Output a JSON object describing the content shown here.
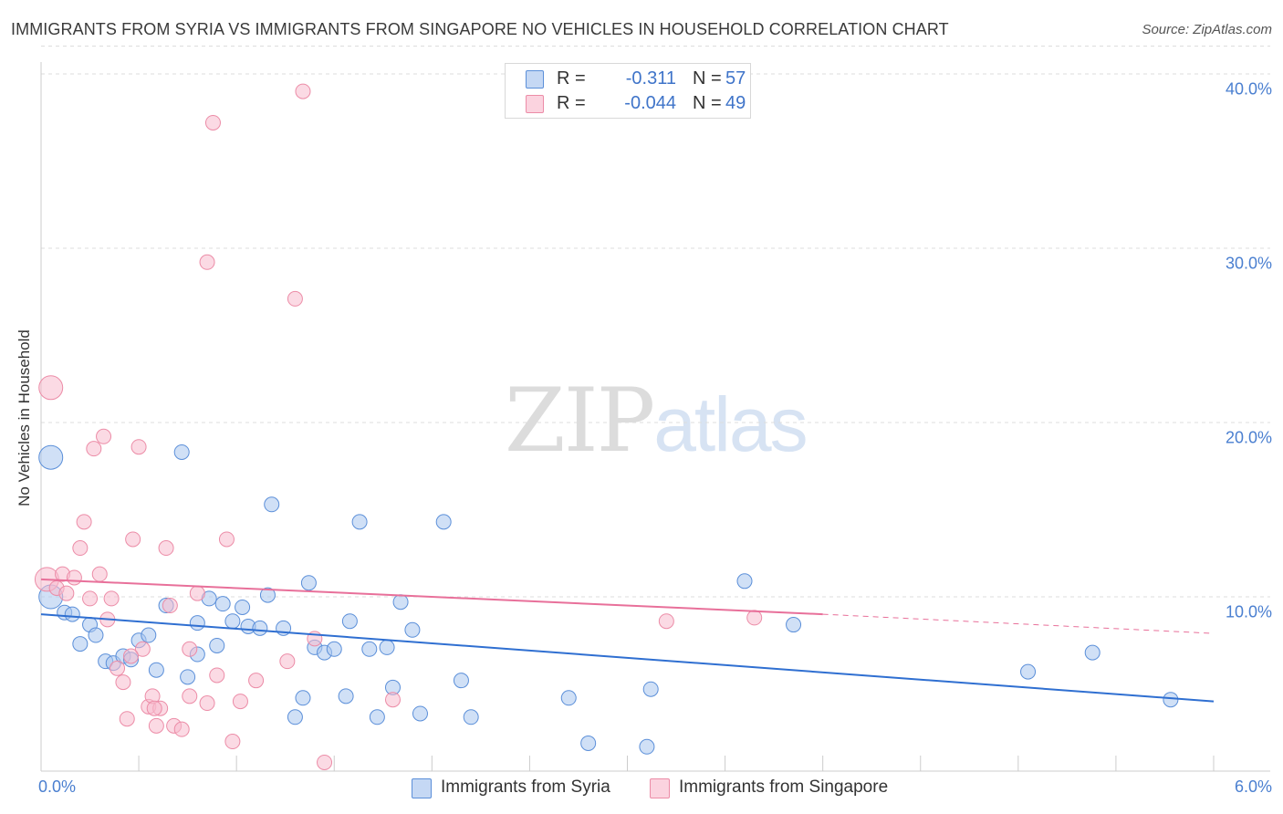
{
  "title": "IMMIGRANTS FROM SYRIA VS IMMIGRANTS FROM SINGAPORE NO VEHICLES IN HOUSEHOLD CORRELATION CHART",
  "source": "Source: ZipAtlas.com",
  "watermark": {
    "left": "ZIP",
    "right": "atlas"
  },
  "legend": {
    "syria": {
      "r_label": "R =",
      "r_value": "-0.311",
      "n_label": "N =",
      "n_value": "57"
    },
    "singapore": {
      "r_label": "R =",
      "r_value": "-0.044",
      "n_label": "N =",
      "n_value": "49"
    }
  },
  "colors": {
    "syria_fill": "#a9c6ef",
    "syria_stroke": "#5b8fd9",
    "syria_line": "#2f6fd1",
    "singapore_fill": "#f7bccd",
    "singapore_stroke": "#ec8ca7",
    "singapore_line": "#e8709a",
    "grid": "#dddddd",
    "tick_text": "#4a7fd0"
  },
  "chart_data": {
    "type": "scatter",
    "title": "IMMIGRANTS FROM SYRIA VS IMMIGRANTS FROM SINGAPORE NO VEHICLES IN HOUSEHOLD CORRELATION CHART",
    "xlabel": "",
    "ylabel": "No Vehicles in Household",
    "xlim": [
      0,
      6
    ],
    "ylim": [
      0,
      40
    ],
    "x_tick_labels": {
      "min": "0.0%",
      "max": "6.0%"
    },
    "y_ticks": [
      10,
      20,
      30,
      40
    ],
    "y_tick_labels": [
      "10.0%",
      "20.0%",
      "30.0%",
      "40.0%"
    ],
    "grid": true,
    "legend_position": "bottom",
    "series": [
      {
        "name": "Immigrants from Syria",
        "r": -0.311,
        "n": 57,
        "trend": {
          "x": [
            0,
            6
          ],
          "y": [
            9.0,
            4.0
          ]
        },
        "points": [
          {
            "x": 0.05,
            "y": 18.0,
            "big": true
          },
          {
            "x": 0.05,
            "y": 10.0,
            "big": true
          },
          {
            "x": 0.12,
            "y": 9.1
          },
          {
            "x": 0.16,
            "y": 9.0
          },
          {
            "x": 0.2,
            "y": 7.3
          },
          {
            "x": 0.25,
            "y": 8.4
          },
          {
            "x": 0.28,
            "y": 7.8
          },
          {
            "x": 0.33,
            "y": 6.3
          },
          {
            "x": 0.37,
            "y": 6.2
          },
          {
            "x": 0.42,
            "y": 6.6
          },
          {
            "x": 0.46,
            "y": 6.4
          },
          {
            "x": 0.5,
            "y": 7.5
          },
          {
            "x": 0.55,
            "y": 7.8
          },
          {
            "x": 0.59,
            "y": 5.8
          },
          {
            "x": 0.64,
            "y": 9.5
          },
          {
            "x": 0.72,
            "y": 18.3
          },
          {
            "x": 0.75,
            "y": 5.4
          },
          {
            "x": 0.8,
            "y": 6.7
          },
          {
            "x": 0.8,
            "y": 8.5
          },
          {
            "x": 0.86,
            "y": 9.9
          },
          {
            "x": 0.9,
            "y": 7.2
          },
          {
            "x": 0.93,
            "y": 9.6
          },
          {
            "x": 0.98,
            "y": 8.6
          },
          {
            "x": 1.03,
            "y": 9.4
          },
          {
            "x": 1.06,
            "y": 8.3
          },
          {
            "x": 1.12,
            "y": 8.2
          },
          {
            "x": 1.16,
            "y": 10.1
          },
          {
            "x": 1.18,
            "y": 15.3
          },
          {
            "x": 1.24,
            "y": 8.2
          },
          {
            "x": 1.3,
            "y": 3.1
          },
          {
            "x": 1.34,
            "y": 4.2
          },
          {
            "x": 1.37,
            "y": 10.8
          },
          {
            "x": 1.4,
            "y": 7.1
          },
          {
            "x": 1.45,
            "y": 6.8
          },
          {
            "x": 1.5,
            "y": 7.0
          },
          {
            "x": 1.56,
            "y": 4.3
          },
          {
            "x": 1.58,
            "y": 8.6
          },
          {
            "x": 1.63,
            "y": 14.3
          },
          {
            "x": 1.68,
            "y": 7.0
          },
          {
            "x": 1.72,
            "y": 3.1
          },
          {
            "x": 1.77,
            "y": 7.1
          },
          {
            "x": 1.8,
            "y": 4.8
          },
          {
            "x": 1.84,
            "y": 9.7
          },
          {
            "x": 1.9,
            "y": 8.1
          },
          {
            "x": 1.94,
            "y": 3.3
          },
          {
            "x": 2.06,
            "y": 14.3
          },
          {
            "x": 2.15,
            "y": 5.2
          },
          {
            "x": 2.2,
            "y": 3.1
          },
          {
            "x": 2.7,
            "y": 4.2
          },
          {
            "x": 2.8,
            "y": 1.6
          },
          {
            "x": 3.1,
            "y": 1.4
          },
          {
            "x": 3.12,
            "y": 4.7
          },
          {
            "x": 3.6,
            "y": 10.9
          },
          {
            "x": 3.85,
            "y": 8.4
          },
          {
            "x": 5.05,
            "y": 5.7
          },
          {
            "x": 5.38,
            "y": 6.8
          },
          {
            "x": 5.78,
            "y": 4.1
          }
        ]
      },
      {
        "name": "Immigrants from Singapore",
        "r": -0.044,
        "n": 49,
        "trend": {
          "x": [
            0,
            4.0
          ],
          "y": [
            11.0,
            9.0
          ]
        },
        "trend_dashed": {
          "x": [
            4.0,
            6
          ],
          "y": [
            9.0,
            7.9
          ]
        },
        "points": [
          {
            "x": 0.03,
            "y": 11.0,
            "big": true
          },
          {
            "x": 0.05,
            "y": 22.0,
            "big": true
          },
          {
            "x": 0.08,
            "y": 10.5
          },
          {
            "x": 0.11,
            "y": 11.3
          },
          {
            "x": 0.13,
            "y": 10.2
          },
          {
            "x": 0.17,
            "y": 11.1
          },
          {
            "x": 0.2,
            "y": 12.8
          },
          {
            "x": 0.22,
            "y": 14.3
          },
          {
            "x": 0.25,
            "y": 9.9
          },
          {
            "x": 0.27,
            "y": 18.5
          },
          {
            "x": 0.3,
            "y": 11.3
          },
          {
            "x": 0.32,
            "y": 19.2
          },
          {
            "x": 0.34,
            "y": 8.7
          },
          {
            "x": 0.36,
            "y": 9.9
          },
          {
            "x": 0.39,
            "y": 5.9
          },
          {
            "x": 0.42,
            "y": 5.1
          },
          {
            "x": 0.44,
            "y": 3.0
          },
          {
            "x": 0.47,
            "y": 13.3
          },
          {
            "x": 0.5,
            "y": 18.6
          },
          {
            "x": 0.52,
            "y": 7.0
          },
          {
            "x": 0.55,
            "y": 3.7
          },
          {
            "x": 0.57,
            "y": 4.3
          },
          {
            "x": 0.59,
            "y": 2.6
          },
          {
            "x": 0.61,
            "y": 3.6
          },
          {
            "x": 0.64,
            "y": 12.8
          },
          {
            "x": 0.66,
            "y": 9.5
          },
          {
            "x": 0.68,
            "y": 2.6
          },
          {
            "x": 0.72,
            "y": 2.4
          },
          {
            "x": 0.76,
            "y": 4.3
          },
          {
            "x": 0.76,
            "y": 7.0
          },
          {
            "x": 0.8,
            "y": 10.2
          },
          {
            "x": 0.85,
            "y": 29.2
          },
          {
            "x": 0.88,
            "y": 37.2
          },
          {
            "x": 0.9,
            "y": 5.5
          },
          {
            "x": 0.95,
            "y": 13.3
          },
          {
            "x": 0.98,
            "y": 1.7
          },
          {
            "x": 1.02,
            "y": 4.0
          },
          {
            "x": 1.1,
            "y": 5.2
          },
          {
            "x": 1.26,
            "y": 6.3
          },
          {
            "x": 1.3,
            "y": 27.1
          },
          {
            "x": 1.34,
            "y": 39.0
          },
          {
            "x": 1.4,
            "y": 7.6
          },
          {
            "x": 1.45,
            "y": 0.5
          },
          {
            "x": 1.8,
            "y": 4.1
          },
          {
            "x": 3.2,
            "y": 8.6
          },
          {
            "x": 3.65,
            "y": 8.8
          },
          {
            "x": 0.85,
            "y": 3.9
          },
          {
            "x": 0.58,
            "y": 3.6
          },
          {
            "x": 0.46,
            "y": 6.6
          }
        ]
      }
    ]
  },
  "bottom_legend": {
    "syria": "Immigrants from Syria",
    "singapore": "Immigrants from Singapore"
  }
}
